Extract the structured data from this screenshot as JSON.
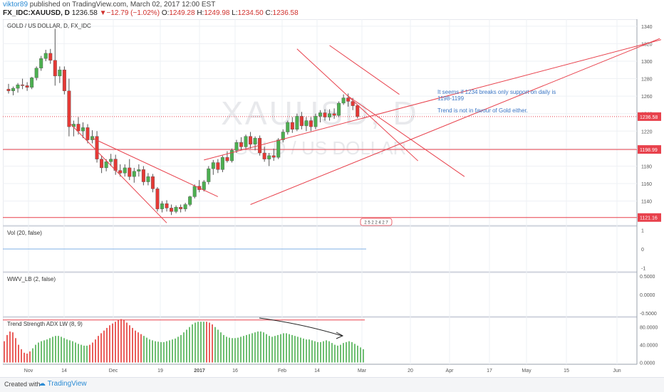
{
  "header": {
    "author": "viktor89",
    "published": "published on TradingView.com, March 02, 2017 12:00 EST",
    "symbol": "FX_IDC:XAUUSD, D",
    "last": "1236.58",
    "change_arrow": "▼",
    "change": "−12.79 (−1.02%)",
    "o_label": "O:",
    "o": "1249.28",
    "h_label": "H:",
    "h": "1249.98",
    "l_label": "L:",
    "l": "1234.50",
    "c_label": "C:",
    "c": "1236.58"
  },
  "footer": {
    "created_with": "Created with",
    "brand": "TradingView",
    "brand_icon": "cloud-icon"
  },
  "watermark": {
    "big": "XAUUSD, D",
    "small": "GOLD / US DOLLAR"
  },
  "colors": {
    "up": "#4caf50",
    "down": "#e53935",
    "line": "#e8414c",
    "text_note": "#3a75c4",
    "price_tag": "#e8414c"
  },
  "chart_data": [
    {
      "type": "candlestick",
      "title": "GOLD / US DOLLAR, D, FX_IDC",
      "x_ticks": [
        "Nov",
        "14",
        "Dec",
        "19",
        "2017",
        "16",
        "Feb",
        "14",
        "Mar",
        "20",
        "Apr",
        "17",
        "May",
        "15",
        "Jun"
      ],
      "y_ticks": [
        1140,
        1160,
        1180,
        1200,
        1220,
        1240,
        1260,
        1280,
        1300,
        1320,
        1340
      ],
      "ylim": [
        1112,
        1348
      ],
      "candles": [
        {
          "o": 1268,
          "h": 1274,
          "l": 1263,
          "c": 1266
        },
        {
          "o": 1266,
          "h": 1271,
          "l": 1261,
          "c": 1269
        },
        {
          "o": 1269,
          "h": 1275,
          "l": 1264,
          "c": 1273
        },
        {
          "o": 1273,
          "h": 1280,
          "l": 1268,
          "c": 1272
        },
        {
          "o": 1272,
          "h": 1276,
          "l": 1266,
          "c": 1270
        },
        {
          "o": 1270,
          "h": 1282,
          "l": 1268,
          "c": 1281
        },
        {
          "o": 1281,
          "h": 1294,
          "l": 1278,
          "c": 1292
        },
        {
          "o": 1292,
          "h": 1306,
          "l": 1289,
          "c": 1303
        },
        {
          "o": 1303,
          "h": 1313,
          "l": 1300,
          "c": 1309
        },
        {
          "o": 1309,
          "h": 1314,
          "l": 1297,
          "c": 1301
        },
        {
          "o": 1301,
          "h": 1337,
          "l": 1272,
          "c": 1283
        },
        {
          "o": 1283,
          "h": 1294,
          "l": 1275,
          "c": 1290
        },
        {
          "o": 1290,
          "h": 1294,
          "l": 1262,
          "c": 1266
        },
        {
          "o": 1266,
          "h": 1280,
          "l": 1214,
          "c": 1225
        },
        {
          "o": 1225,
          "h": 1232,
          "l": 1214,
          "c": 1228
        },
        {
          "o": 1228,
          "h": 1236,
          "l": 1216,
          "c": 1220
        },
        {
          "o": 1220,
          "h": 1230,
          "l": 1212,
          "c": 1224
        },
        {
          "o": 1224,
          "h": 1228,
          "l": 1206,
          "c": 1210
        },
        {
          "o": 1210,
          "h": 1221,
          "l": 1206,
          "c": 1214
        },
        {
          "o": 1214,
          "h": 1220,
          "l": 1184,
          "c": 1188
        },
        {
          "o": 1188,
          "h": 1192,
          "l": 1172,
          "c": 1178
        },
        {
          "o": 1178,
          "h": 1188,
          "l": 1174,
          "c": 1185
        },
        {
          "o": 1185,
          "h": 1194,
          "l": 1180,
          "c": 1188
        },
        {
          "o": 1188,
          "h": 1193,
          "l": 1170,
          "c": 1175
        },
        {
          "o": 1175,
          "h": 1182,
          "l": 1168,
          "c": 1172
        },
        {
          "o": 1172,
          "h": 1182,
          "l": 1168,
          "c": 1178
        },
        {
          "o": 1178,
          "h": 1188,
          "l": 1164,
          "c": 1168
        },
        {
          "o": 1168,
          "h": 1178,
          "l": 1161,
          "c": 1174
        },
        {
          "o": 1174,
          "h": 1182,
          "l": 1168,
          "c": 1176
        },
        {
          "o": 1176,
          "h": 1180,
          "l": 1158,
          "c": 1162
        },
        {
          "o": 1162,
          "h": 1172,
          "l": 1158,
          "c": 1168
        },
        {
          "o": 1168,
          "h": 1171,
          "l": 1150,
          "c": 1154
        },
        {
          "o": 1154,
          "h": 1156,
          "l": 1128,
          "c": 1131
        },
        {
          "o": 1131,
          "h": 1140,
          "l": 1127,
          "c": 1137
        },
        {
          "o": 1137,
          "h": 1141,
          "l": 1128,
          "c": 1132
        },
        {
          "o": 1132,
          "h": 1136,
          "l": 1124,
          "c": 1128
        },
        {
          "o": 1128,
          "h": 1135,
          "l": 1126,
          "c": 1133
        },
        {
          "o": 1133,
          "h": 1136,
          "l": 1127,
          "c": 1131
        },
        {
          "o": 1131,
          "h": 1138,
          "l": 1128,
          "c": 1136
        },
        {
          "o": 1136,
          "h": 1146,
          "l": 1134,
          "c": 1145
        },
        {
          "o": 1145,
          "h": 1159,
          "l": 1143,
          "c": 1157
        },
        {
          "o": 1157,
          "h": 1164,
          "l": 1150,
          "c": 1153
        },
        {
          "o": 1153,
          "h": 1164,
          "l": 1151,
          "c": 1162
        },
        {
          "o": 1162,
          "h": 1180,
          "l": 1159,
          "c": 1177
        },
        {
          "o": 1177,
          "h": 1187,
          "l": 1170,
          "c": 1184
        },
        {
          "o": 1184,
          "h": 1188,
          "l": 1172,
          "c": 1176
        },
        {
          "o": 1176,
          "h": 1192,
          "l": 1173,
          "c": 1190
        },
        {
          "o": 1190,
          "h": 1197,
          "l": 1184,
          "c": 1186
        },
        {
          "o": 1186,
          "h": 1200,
          "l": 1184,
          "c": 1198
        },
        {
          "o": 1198,
          "h": 1210,
          "l": 1195,
          "c": 1207
        },
        {
          "o": 1207,
          "h": 1213,
          "l": 1198,
          "c": 1202
        },
        {
          "o": 1202,
          "h": 1216,
          "l": 1200,
          "c": 1214
        },
        {
          "o": 1214,
          "h": 1219,
          "l": 1200,
          "c": 1205
        },
        {
          "o": 1205,
          "h": 1214,
          "l": 1198,
          "c": 1212
        },
        {
          "o": 1212,
          "h": 1215,
          "l": 1192,
          "c": 1195
        },
        {
          "o": 1195,
          "h": 1202,
          "l": 1185,
          "c": 1188
        },
        {
          "o": 1188,
          "h": 1195,
          "l": 1180,
          "c": 1192
        },
        {
          "o": 1192,
          "h": 1200,
          "l": 1186,
          "c": 1190
        },
        {
          "o": 1190,
          "h": 1212,
          "l": 1188,
          "c": 1210
        },
        {
          "o": 1210,
          "h": 1222,
          "l": 1207,
          "c": 1219
        },
        {
          "o": 1219,
          "h": 1232,
          "l": 1216,
          "c": 1230
        },
        {
          "o": 1230,
          "h": 1236,
          "l": 1218,
          "c": 1222
        },
        {
          "o": 1222,
          "h": 1240,
          "l": 1220,
          "c": 1237
        },
        {
          "o": 1237,
          "h": 1242,
          "l": 1222,
          "c": 1226
        },
        {
          "o": 1226,
          "h": 1236,
          "l": 1220,
          "c": 1232
        },
        {
          "o": 1232,
          "h": 1236,
          "l": 1220,
          "c": 1225
        },
        {
          "o": 1225,
          "h": 1240,
          "l": 1222,
          "c": 1237
        },
        {
          "o": 1237,
          "h": 1244,
          "l": 1230,
          "c": 1241
        },
        {
          "o": 1241,
          "h": 1245,
          "l": 1232,
          "c": 1236
        },
        {
          "o": 1236,
          "h": 1245,
          "l": 1232,
          "c": 1240
        },
        {
          "o": 1240,
          "h": 1246,
          "l": 1234,
          "c": 1238
        },
        {
          "o": 1238,
          "h": 1254,
          "l": 1236,
          "c": 1252
        },
        {
          "o": 1252,
          "h": 1262,
          "l": 1250,
          "c": 1258
        },
        {
          "o": 1258,
          "h": 1263,
          "l": 1248,
          "c": 1254
        },
        {
          "o": 1254,
          "h": 1258,
          "l": 1244,
          "c": 1249
        },
        {
          "o": 1249.28,
          "h": 1249.98,
          "l": 1234.5,
          "c": 1236.58
        }
      ],
      "horizontal_levels": [
        {
          "value": 1198.99,
          "label": "1198.99"
        },
        {
          "value": 1121.16,
          "label": "1121.16"
        }
      ],
      "last_price": {
        "value": 1236.58,
        "label": "1236.58"
      },
      "trend_lines": [
        {
          "from": [
            13,
            1230
          ],
          "to": [
            34,
            1115
          ]
        },
        {
          "from": [
            18,
            1212
          ],
          "to": [
            45,
            1145
          ]
        },
        {
          "from": [
            42,
            1187
          ],
          "to": [
            142,
            1327
          ]
        },
        {
          "from": [
            52,
            1136
          ],
          "to": [
            140,
            1326
          ]
        },
        {
          "from": [
            73,
            1260
          ],
          "to": [
            98,
            1168
          ]
        },
        {
          "from": [
            62,
            1314
          ],
          "to": [
            88,
            1186
          ]
        },
        {
          "from": [
            69,
            1318
          ],
          "to": [
            84,
            1262
          ]
        }
      ],
      "note_lines": [
        "It seems if 1234 breaks only support on daily is",
        "1198-1199",
        "Trend is not in favour of Gold either."
      ],
      "event_label": "2 5 2 2 4 2 7"
    },
    {
      "type": "line",
      "title": "Vol (20, false)",
      "y_ticks": [
        "1",
        "0",
        "-1"
      ],
      "ylim": [
        -1.2,
        1.2
      ],
      "values_constant": 0
    },
    {
      "type": "line",
      "title": "WWV_LB (2, false)",
      "y_ticks": [
        "0.5000",
        "0.0000",
        "-0.5000"
      ],
      "ylim": [
        -0.6,
        0.6
      ]
    },
    {
      "type": "bar",
      "title": "Trend Strength ADX LW (8, 9)",
      "y_ticks": [
        "80.0000",
        "40.0000",
        "0.0000"
      ],
      "ylim": [
        -4,
        102
      ],
      "reference_level": 96,
      "segments": [
        {
          "color": "red",
          "from": 0,
          "to": 9
        },
        {
          "color": "green",
          "from": 10,
          "to": 29
        },
        {
          "color": "red",
          "from": 30,
          "to": 48
        },
        {
          "color": "green",
          "from": 49,
          "to": 70
        },
        {
          "color": "red",
          "from": 71,
          "to": 73
        },
        {
          "color": "green",
          "from": 74,
          "to": 126
        }
      ],
      "values": [
        48,
        62,
        70,
        68,
        55,
        40,
        30,
        22,
        20,
        25,
        32,
        40,
        45,
        48,
        50,
        52,
        55,
        58,
        60,
        60,
        58,
        55,
        52,
        50,
        48,
        45,
        42,
        40,
        38,
        38,
        40,
        45,
        52,
        60,
        66,
        72,
        78,
        84,
        88,
        92,
        96,
        98,
        96,
        90,
        84,
        78,
        72,
        68,
        64,
        60,
        56,
        52,
        50,
        48,
        47,
        46,
        46,
        48,
        50,
        52,
        54,
        58,
        62,
        68,
        74,
        80,
        86,
        90,
        92,
        92,
        92,
        92,
        90,
        86,
        80,
        74,
        68,
        62,
        58,
        56,
        55,
        55,
        56,
        58,
        60,
        62,
        64,
        66,
        68,
        70,
        70,
        68,
        64,
        60,
        58,
        60,
        62,
        64,
        66,
        66,
        64,
        62,
        60,
        58,
        56,
        54,
        52,
        52,
        50,
        48,
        46,
        46,
        48,
        50,
        48,
        44,
        40,
        38,
        40,
        44,
        46,
        48,
        46,
        42,
        38,
        34,
        30
      ],
      "arrow_note": true
    }
  ]
}
